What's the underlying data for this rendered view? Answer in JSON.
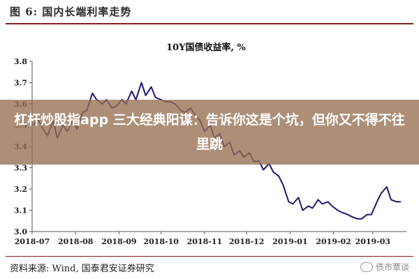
{
  "figure_title": "图 6:  国内长端利率走势",
  "source_note": "资料来源:  Wind,  国泰君安证券研究",
  "watermark": {
    "text": "债市覃谈",
    "icon": "wechat-logo-icon"
  },
  "overlay_banner": "杠杆炒股指app 三大经典阳谋：告诉你这是个坑，但你又不得不往里跳",
  "colors": {
    "line": "#1a1a70",
    "accent_rule": "#8a1e1e",
    "banner_bg": "#967052"
  },
  "chart_data": {
    "type": "line",
    "title": "10Y国债收益率,  %",
    "x_tick_labels": [
      "2018-07",
      "2018-08",
      "2018-09",
      "2018-10",
      "2018-11",
      "2018-12",
      "2019-01",
      "2019-02",
      "2019-03"
    ],
    "ylim": [
      3.0,
      3.8
    ],
    "y_ticks": [
      "3.0",
      "3.1",
      "3.2",
      "3.3",
      "3.4",
      "3.5",
      "3.6",
      "3.7",
      "3.8"
    ],
    "grid": false,
    "series": [
      {
        "x": [
          "2018-07-02",
          "2018-07-05",
          "2018-07-09",
          "2018-07-12",
          "2018-07-16",
          "2018-07-19",
          "2018-07-23",
          "2018-07-26",
          "2018-07-30",
          "2018-08-02",
          "2018-08-06",
          "2018-08-09",
          "2018-08-13",
          "2018-08-16",
          "2018-08-20",
          "2018-08-23",
          "2018-08-27",
          "2018-08-30",
          "2018-09-03",
          "2018-09-06",
          "2018-09-10",
          "2018-09-13",
          "2018-09-17",
          "2018-09-20",
          "2018-09-24",
          "2018-09-27",
          "2018-10-01",
          "2018-10-04",
          "2018-10-08",
          "2018-10-11",
          "2018-10-15",
          "2018-10-18",
          "2018-10-22",
          "2018-10-25",
          "2018-10-29",
          "2018-11-01",
          "2018-11-05",
          "2018-11-08",
          "2018-11-12",
          "2018-11-15",
          "2018-11-19",
          "2018-11-22",
          "2018-11-26",
          "2018-11-29",
          "2018-12-03",
          "2018-12-06",
          "2018-12-10",
          "2018-12-13",
          "2018-12-17",
          "2018-12-20",
          "2018-12-24",
          "2018-12-27",
          "2018-12-31",
          "2019-01-03",
          "2019-01-07",
          "2019-01-10",
          "2019-01-14",
          "2019-01-17",
          "2019-01-21",
          "2019-01-24",
          "2019-01-28",
          "2019-01-31",
          "2019-02-04",
          "2019-02-07",
          "2019-02-11",
          "2019-02-14",
          "2019-02-18",
          "2019-02-21",
          "2019-02-25",
          "2019-02-28",
          "2019-03-04",
          "2019-03-07",
          "2019-03-11",
          "2019-03-14",
          "2019-03-18",
          "2019-03-21"
        ],
        "values": [
          3.5,
          3.53,
          3.48,
          3.45,
          3.52,
          3.44,
          3.5,
          3.47,
          3.52,
          3.48,
          3.56,
          3.57,
          3.65,
          3.62,
          3.6,
          3.62,
          3.58,
          3.59,
          3.62,
          3.6,
          3.66,
          3.62,
          3.7,
          3.64,
          3.68,
          3.63,
          3.62,
          3.61,
          3.61,
          3.6,
          3.57,
          3.56,
          3.58,
          3.55,
          3.52,
          3.47,
          3.5,
          3.44,
          3.46,
          3.4,
          3.42,
          3.36,
          3.38,
          3.35,
          3.37,
          3.33,
          3.33,
          3.29,
          3.32,
          3.28,
          3.26,
          3.22,
          3.14,
          3.13,
          3.16,
          3.1,
          3.12,
          3.11,
          3.15,
          3.13,
          3.14,
          3.12,
          3.1,
          3.09,
          3.08,
          3.07,
          3.06,
          3.06,
          3.08,
          3.08,
          3.14,
          3.18,
          3.21,
          3.15,
          3.14,
          3.14
        ]
      }
    ]
  }
}
